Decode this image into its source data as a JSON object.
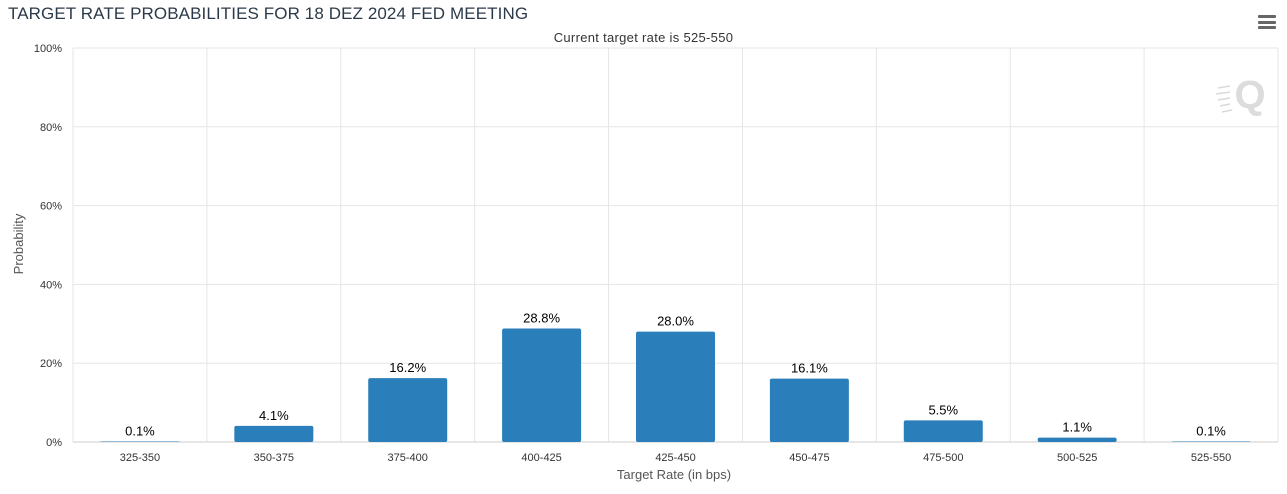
{
  "title": "TARGET RATE PROBABILITIES FOR 18 DEZ 2024 FED MEETING",
  "subtitle": "Current target rate is 525-550",
  "icons": {
    "menu": "hamburger-menu-icon",
    "watermark": "q-logo-icon"
  },
  "colors": {
    "bar": "#2a7fba",
    "grid": "#e6e6e6",
    "axis_text": "#333333",
    "title": "#2b3a4a"
  },
  "chart_data": {
    "type": "bar",
    "title": "TARGET RATE PROBABILITIES FOR 18 DEZ 2024 FED MEETING",
    "subtitle": "Current target rate is 525-550",
    "xlabel": "Target Rate (in bps)",
    "ylabel": "Probability",
    "ylim": [
      0,
      100
    ],
    "yticks": [
      "0%",
      "20%",
      "40%",
      "60%",
      "80%",
      "100%"
    ],
    "yticks_values": [
      0,
      20,
      40,
      60,
      80,
      100
    ],
    "categories": [
      "325-350",
      "350-375",
      "375-400",
      "400-425",
      "425-450",
      "450-475",
      "475-500",
      "500-525",
      "525-550"
    ],
    "values": [
      0.1,
      4.1,
      16.2,
      28.8,
      28.0,
      16.1,
      5.5,
      1.1,
      0.1
    ],
    "data_labels": [
      "0.1%",
      "4.1%",
      "16.2%",
      "28.8%",
      "28.0%",
      "16.1%",
      "5.5%",
      "1.1%",
      "0.1%"
    ],
    "grid": true,
    "legend": "none"
  }
}
